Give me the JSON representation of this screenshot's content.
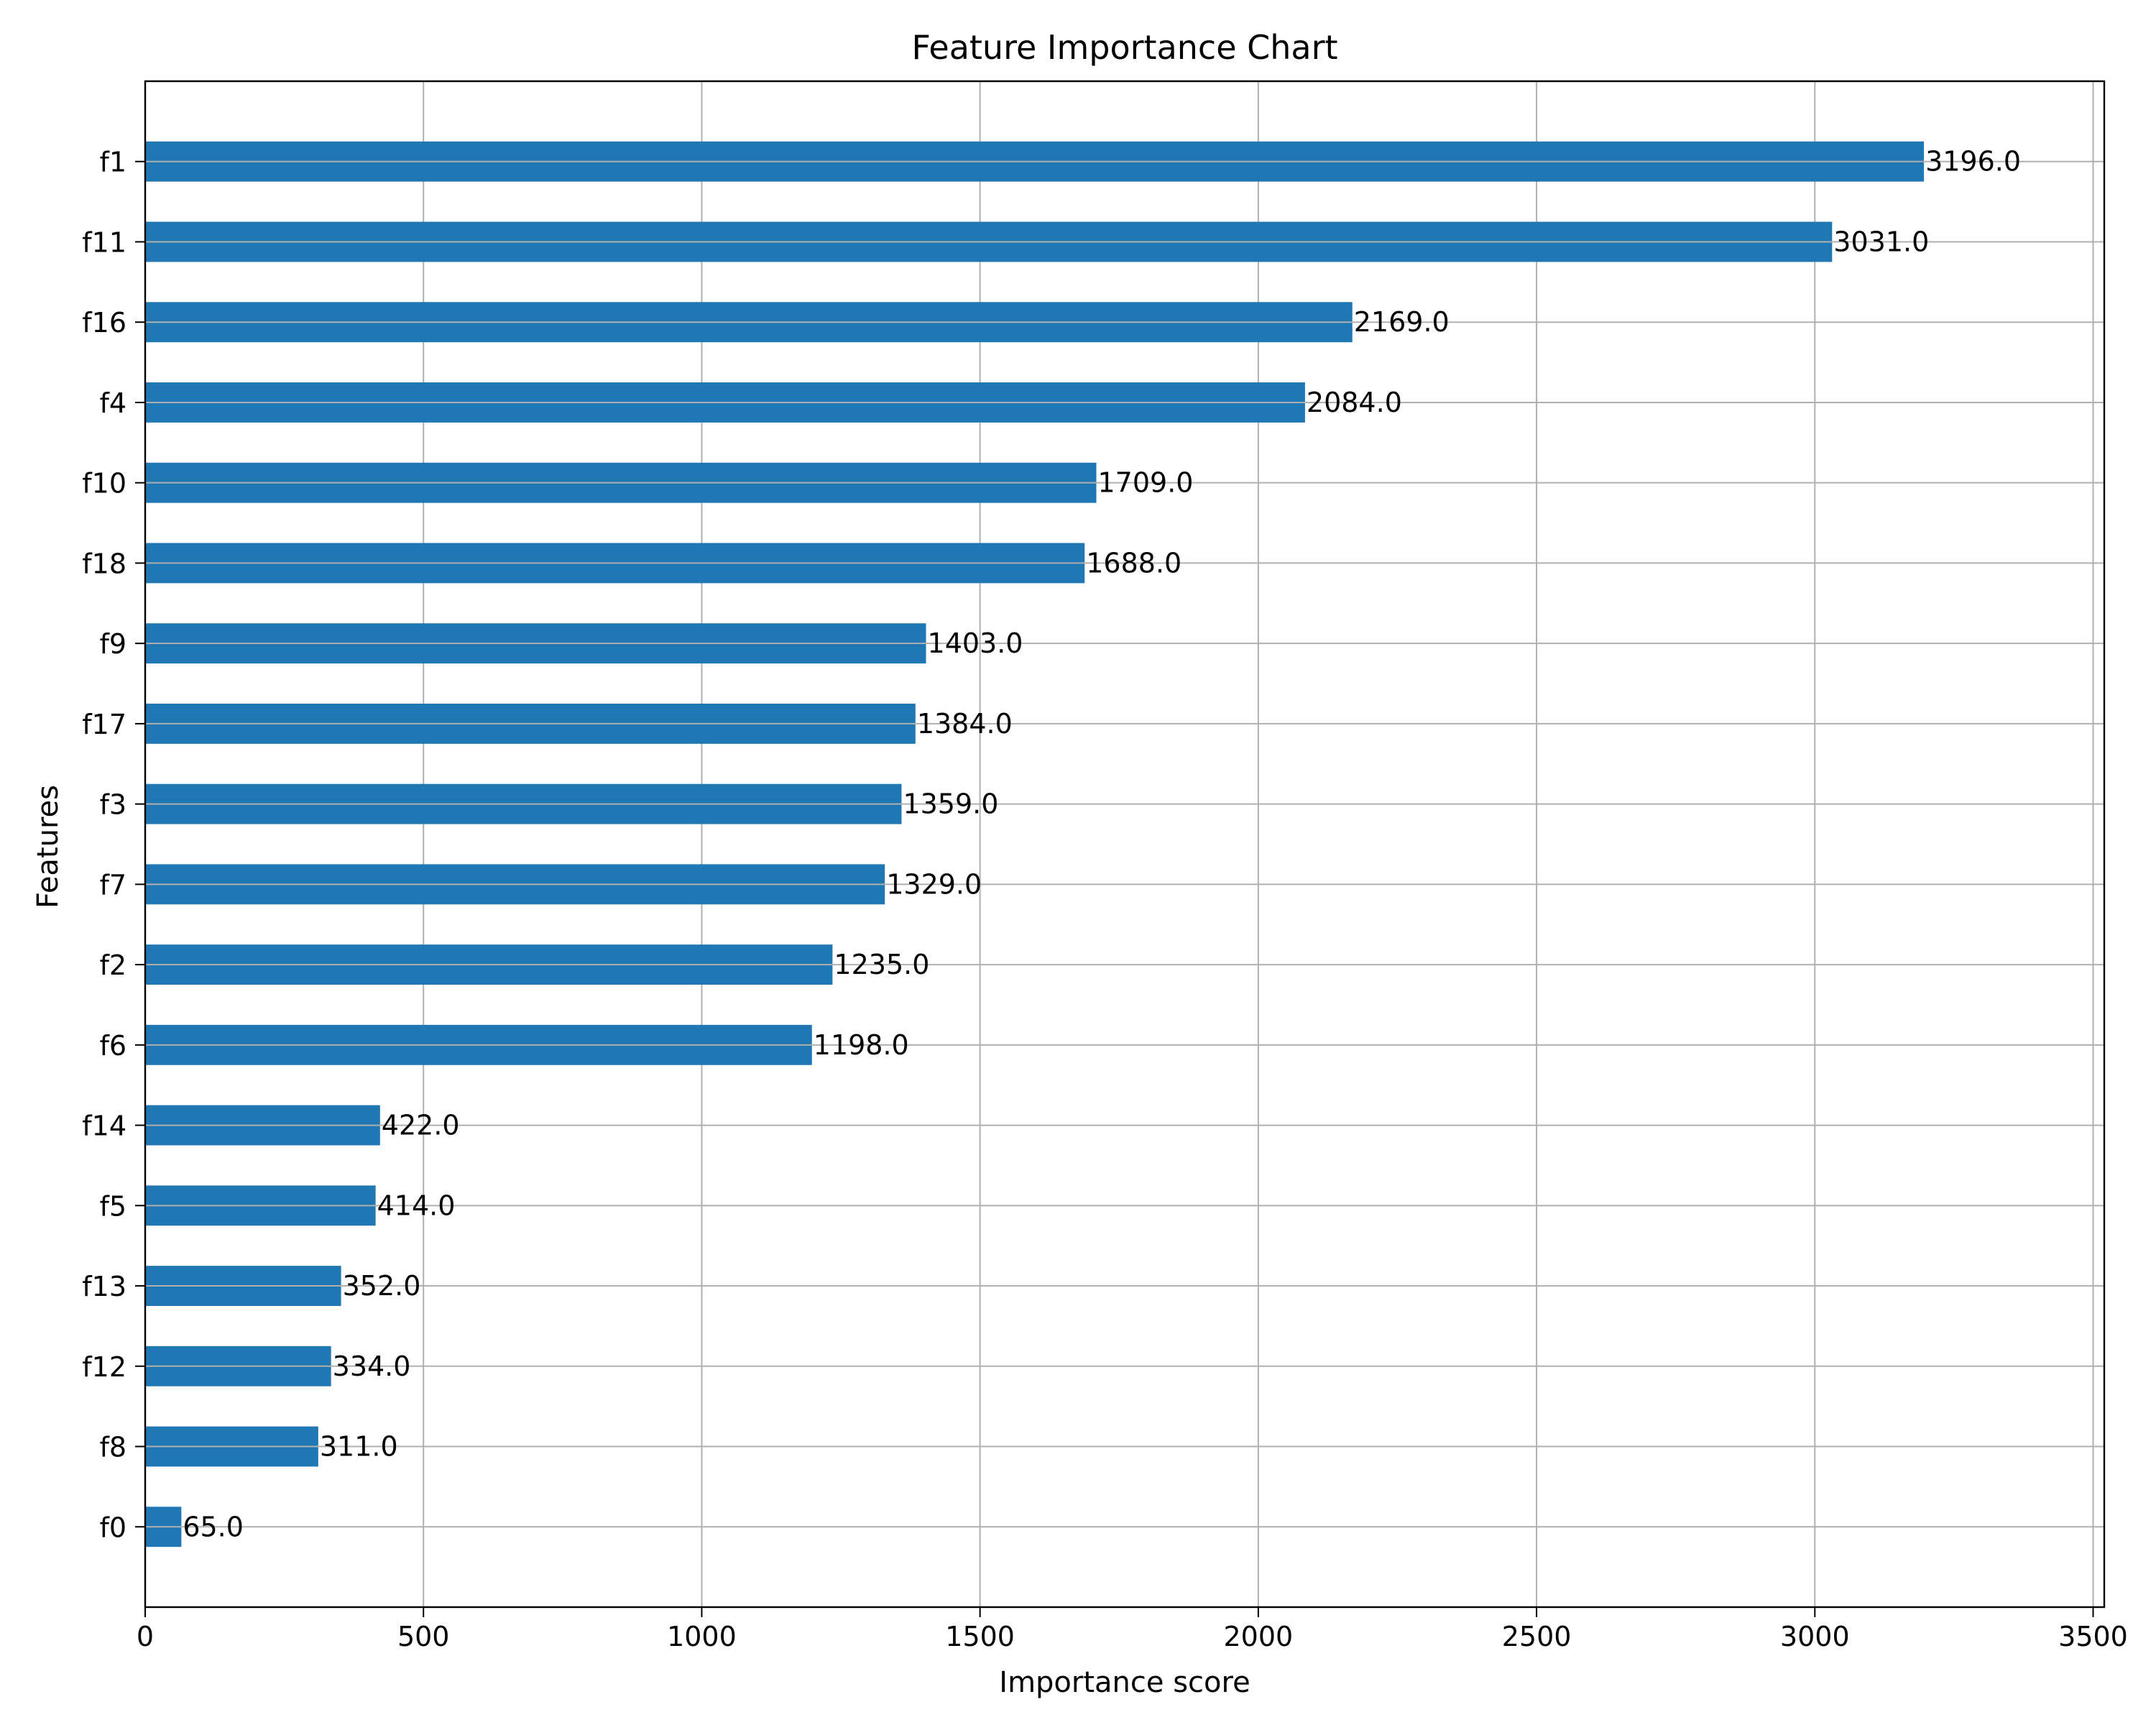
{
  "chart_data": {
    "type": "bar",
    "orientation": "horizontal",
    "title": "Feature Importance Chart",
    "xlabel": "Importance score",
    "ylabel": "Features",
    "xlim": [
      0,
      3520
    ],
    "xticks": [
      0,
      500,
      1000,
      1500,
      2000,
      2500,
      3000,
      3500
    ],
    "xtick_labels": [
      "0",
      "500",
      "1000",
      "1500",
      "2000",
      "2500",
      "3000",
      "3500"
    ],
    "grid": true,
    "bar_color": "#1f77b4",
    "categories": [
      "f1",
      "f11",
      "f16",
      "f4",
      "f10",
      "f18",
      "f9",
      "f17",
      "f3",
      "f7",
      "f2",
      "f6",
      "f14",
      "f5",
      "f13",
      "f12",
      "f8",
      "f0"
    ],
    "values": [
      3196,
      3031,
      2169,
      2084,
      1709,
      1688,
      1403,
      1384,
      1359,
      1329,
      1235,
      1198,
      422,
      414,
      352,
      334,
      311,
      65
    ],
    "value_labels": [
      "3196.0",
      "3031.0",
      "2169.0",
      "2084.0",
      "1709.0",
      "1688.0",
      "1403.0",
      "1384.0",
      "1359.0",
      "1329.0",
      "1235.0",
      "1198.0",
      "422.0",
      "414.0",
      "352.0",
      "334.0",
      "311.0",
      "65.0"
    ]
  }
}
